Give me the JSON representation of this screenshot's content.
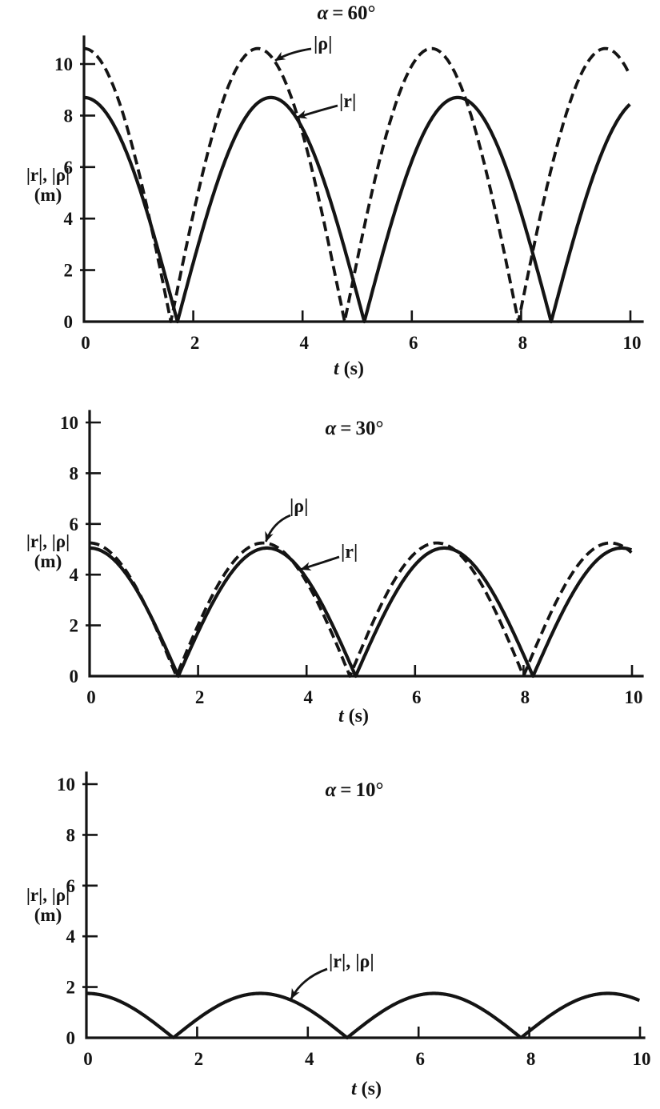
{
  "page": {
    "background": "#ffffff",
    "ink": "#141414"
  },
  "chart_data": [
    {
      "type": "line",
      "title": "α = 60°",
      "title_var": "α",
      "title_eq": "=",
      "title_value": "60°",
      "xlabel": "t (s)",
      "xlabel_var": "t",
      "xlabel_unit": "(s)",
      "ylabel": "|r|, |ρ| (m)",
      "ylabel_line1": "|r|, |ρ|",
      "ylabel_line2": "(m)",
      "xlim": [
        0,
        10
      ],
      "ylim": [
        0,
        10.6
      ],
      "x_ticks": [
        0,
        2,
        4,
        6,
        8,
        10
      ],
      "y_ticks": [
        0,
        2,
        4,
        6,
        8,
        10
      ],
      "grid": false,
      "series": [
        {
          "name": "|ρ|",
          "line_style": "dashed",
          "curve": "abs-cosine",
          "amplitude_m": 10.6,
          "arch_width_s": 3.18,
          "zeros_s": [
            1.59,
            4.77,
            7.95
          ],
          "peak_times_s": [
            0,
            3.18,
            6.36,
            9.54
          ],
          "value_at_t0_m": 10.6
        },
        {
          "name": "|r|",
          "line_style": "solid",
          "curve": "abs-cosine",
          "amplitude_m": 8.7,
          "arch_width_s": 3.42,
          "zeros_s": [
            1.71,
            5.13,
            8.55
          ],
          "peak_times_s": [
            0,
            3.42,
            6.84
          ],
          "value_at_t0_m": 8.7
        }
      ],
      "annotations": [
        {
          "text": "|ρ|",
          "series": "|ρ|"
        },
        {
          "text": "|r|",
          "series": "|r|"
        }
      ]
    },
    {
      "type": "line",
      "title": "α = 30°",
      "title_var": "α",
      "title_eq": "=",
      "title_value": "30°",
      "xlabel": "t (s)",
      "xlabel_var": "t",
      "xlabel_unit": "(s)",
      "ylabel": "|r|, |ρ| (m)",
      "ylabel_line1": "|r|, |ρ|",
      "ylabel_line2": "(m)",
      "xlim": [
        0,
        10
      ],
      "ylim": [
        0,
        10
      ],
      "x_ticks": [
        0,
        2,
        4,
        6,
        8,
        10
      ],
      "y_ticks": [
        0,
        2,
        4,
        6,
        8,
        10
      ],
      "grid": false,
      "series": [
        {
          "name": "|ρ|",
          "line_style": "dashed",
          "curve": "abs-cosine",
          "amplitude_m": 5.25,
          "arch_width_s": 3.2,
          "zeros_s": [
            1.6,
            4.8,
            8.0
          ],
          "peak_times_s": [
            0,
            3.2,
            6.4,
            9.6
          ],
          "value_at_t0_m": 5.25
        },
        {
          "name": "|r|",
          "line_style": "solid",
          "curve": "abs-cosine",
          "amplitude_m": 5.05,
          "arch_width_s": 3.27,
          "zeros_s": [
            1.64,
            4.91,
            8.18
          ],
          "peak_times_s": [
            0,
            3.27,
            6.54,
            9.81
          ],
          "value_at_t0_m": 5.05
        }
      ],
      "annotations": [
        {
          "text": "|ρ|",
          "series": "|ρ|"
        },
        {
          "text": "|r|",
          "series": "|r|"
        }
      ]
    },
    {
      "type": "line",
      "title": "α = 10°",
      "title_var": "α",
      "title_eq": "=",
      "title_value": "10°",
      "xlabel": "t (s)",
      "xlabel_var": "t",
      "xlabel_unit": "(s)",
      "ylabel": "|r|, |ρ| (m)",
      "ylabel_line1": "|r|, |ρ|",
      "ylabel_line2": "(m)",
      "xlim": [
        0,
        10
      ],
      "ylim": [
        0,
        10
      ],
      "x_ticks": [
        0,
        2,
        4,
        6,
        8,
        10
      ],
      "y_ticks": [
        0,
        2,
        4,
        6,
        8,
        10
      ],
      "grid": false,
      "series": [
        {
          "name": "|r|, |ρ|",
          "line_style": "solid",
          "curve": "abs-cosine",
          "amplitude_m": 1.75,
          "arch_width_s": 3.14,
          "zeros_s": [
            1.57,
            4.71,
            7.85
          ],
          "peak_times_s": [
            0,
            3.14,
            6.28,
            9.42
          ],
          "value_at_t0_m": 1.75
        }
      ],
      "annotations": [
        {
          "text": "|r|, |ρ|",
          "series": "|r|, |ρ|"
        }
      ]
    }
  ]
}
